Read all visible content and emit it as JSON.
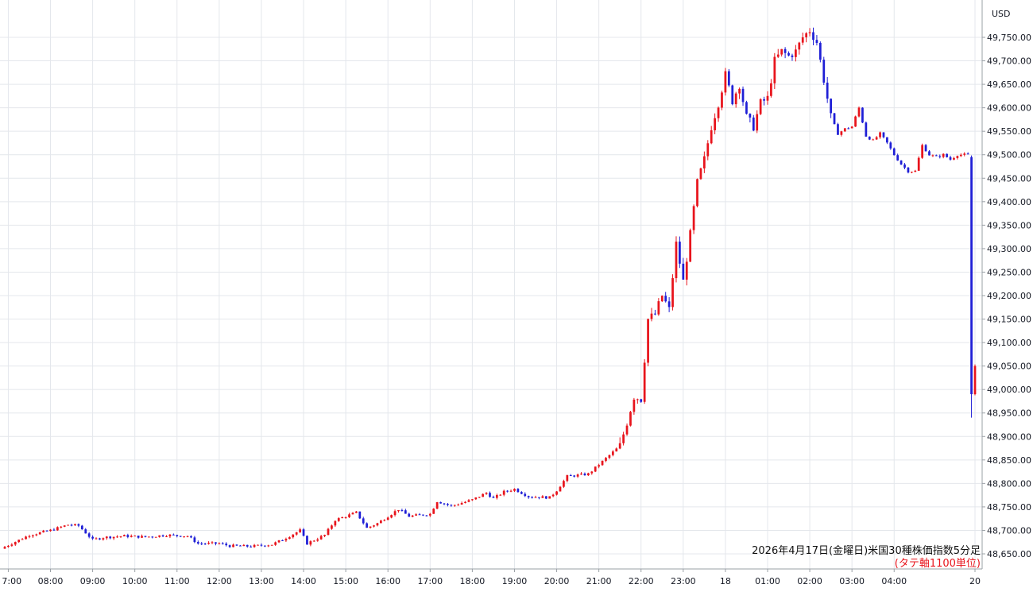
{
  "chart_data": {
    "type": "candlestick",
    "currency": "USD",
    "annotation_line1": "2026年4月17日(金曜日)米国30種株価指数5分足",
    "annotation_line2": "(タテ軸1100単位)",
    "y_ticks": [
      "48,650.00",
      "48,700.00",
      "48,750.00",
      "48,800.00",
      "48,850.00",
      "48,900.00",
      "48,950.00",
      "49,000.00",
      "49,050.00",
      "49,100.00",
      "49,150.00",
      "49,200.00",
      "49,250.00",
      "49,300.00",
      "49,350.00",
      "49,400.00",
      "49,450.00",
      "49,500.00",
      "49,550.00",
      "49,600.00",
      "49,650.00",
      "49,700.00",
      "49,750.00"
    ],
    "x_ticks": [
      "7:00",
      "08:00",
      "09:00",
      "10:00",
      "11:00",
      "12:00",
      "13:00",
      "14:00",
      "15:00",
      "16:00",
      "17:00",
      "18:00",
      "19:00",
      "20:00",
      "21:00",
      "22:00",
      "23:00",
      "18",
      "01:00",
      "02:00",
      "03:00",
      "04:00",
      "20"
    ],
    "ylim": [
      48620,
      49780
    ],
    "grid": true,
    "up_color": "#e8141c",
    "down_color": "#1f1fd6",
    "close_path": [
      [
        "06:55",
        48665
      ],
      [
        "07:30",
        48690
      ],
      [
        "08:00",
        48700
      ],
      [
        "08:25",
        48712
      ],
      [
        "08:40",
        48710
      ],
      [
        "09:00",
        48680
      ],
      [
        "09:15",
        48685
      ],
      [
        "09:45",
        48688
      ],
      [
        "10:15",
        48686
      ],
      [
        "10:45",
        48690
      ],
      [
        "11:15",
        48688
      ],
      [
        "11:30",
        48672
      ],
      [
        "12:00",
        48672
      ],
      [
        "12:15",
        48667
      ],
      [
        "12:45",
        48666
      ],
      [
        "13:15",
        48670
      ],
      [
        "13:30",
        48680
      ],
      [
        "13:55",
        48700
      ],
      [
        "14:05",
        48672
      ],
      [
        "14:30",
        48690
      ],
      [
        "14:45",
        48722
      ],
      [
        "15:15",
        48738
      ],
      [
        "15:30",
        48705
      ],
      [
        "15:45",
        48715
      ],
      [
        "16:00",
        48730
      ],
      [
        "16:15",
        48745
      ],
      [
        "16:30",
        48730
      ],
      [
        "17:00",
        48735
      ],
      [
        "17:10",
        48762
      ],
      [
        "17:30",
        48752
      ],
      [
        "18:00",
        48765
      ],
      [
        "18:20",
        48780
      ],
      [
        "18:30",
        48768
      ],
      [
        "18:45",
        48782
      ],
      [
        "19:00",
        48788
      ],
      [
        "19:20",
        48772
      ],
      [
        "19:50",
        48770
      ],
      [
        "20:00",
        48785
      ],
      [
        "20:15",
        48815
      ],
      [
        "20:45",
        48820
      ],
      [
        "21:00",
        48840
      ],
      [
        "21:15",
        48860
      ],
      [
        "21:30",
        48880
      ],
      [
        "21:40",
        48930
      ],
      [
        "21:50",
        48985
      ],
      [
        "22:00",
        48980
      ],
      [
        "22:10",
        49150
      ],
      [
        "22:20",
        49160
      ],
      [
        "22:30",
        49200
      ],
      [
        "22:40",
        49170
      ],
      [
        "22:50",
        49310
      ],
      [
        "23:00",
        49230
      ],
      [
        "23:10",
        49330
      ],
      [
        "23:20",
        49440
      ],
      [
        "23:30",
        49490
      ],
      [
        "23:40",
        49560
      ],
      [
        "23:50",
        49610
      ],
      [
        "00:00",
        49670
      ],
      [
        "00:10",
        49615
      ],
      [
        "00:20",
        49650
      ],
      [
        "00:30",
        49580
      ],
      [
        "00:40",
        49560
      ],
      [
        "00:50",
        49610
      ],
      [
        "01:00",
        49620
      ],
      [
        "01:10",
        49700
      ],
      [
        "01:20",
        49720
      ],
      [
        "01:30",
        49710
      ],
      [
        "01:40",
        49720
      ],
      [
        "01:50",
        49750
      ],
      [
        "02:00",
        49765
      ],
      [
        "02:10",
        49740
      ],
      [
        "02:20",
        49660
      ],
      [
        "02:30",
        49580
      ],
      [
        "02:40",
        49545
      ],
      [
        "02:50",
        49555
      ],
      [
        "03:00",
        49560
      ],
      [
        "03:10",
        49600
      ],
      [
        "03:20",
        49540
      ],
      [
        "03:30",
        49530
      ],
      [
        "03:40",
        49545
      ],
      [
        "03:50",
        49525
      ],
      [
        "04:00",
        49500
      ],
      [
        "04:10",
        49480
      ],
      [
        "04:20",
        49465
      ],
      [
        "04:30",
        49465
      ],
      [
        "04:40",
        49520
      ],
      [
        "04:50",
        49500
      ],
      [
        "05:00",
        49495
      ],
      [
        "05:10",
        49500
      ],
      [
        "05:20",
        49490
      ],
      [
        "05:30",
        49500
      ],
      [
        "05:40",
        49500
      ],
      [
        "05:45",
        49500
      ],
      [
        "05:50",
        48990
      ],
      [
        "05:55",
        49040
      ]
    ]
  }
}
